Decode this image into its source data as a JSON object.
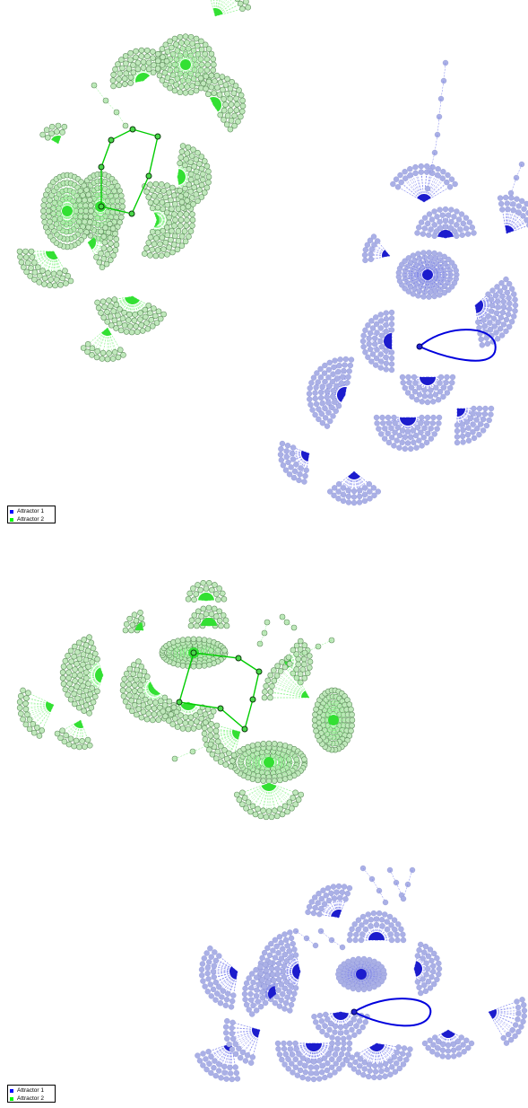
{
  "legend": {
    "items": [
      {
        "label": "Attractor 1",
        "color": "#0000ff"
      },
      {
        "label": "Attractor 2",
        "color": "#00ff00"
      }
    ]
  },
  "colors": {
    "attractor1_edge": "#0000dd",
    "attractor2_edge": "#00cc00",
    "basin1_node": "#aab0e6",
    "basin2_node": "#bfe8bb"
  }
}
